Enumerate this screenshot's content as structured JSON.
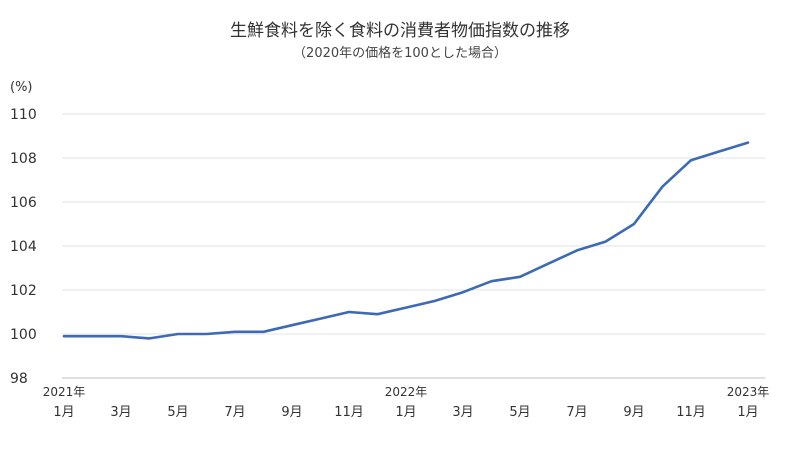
{
  "chart_data": {
    "type": "line",
    "title": "生鮮食料を除く食料の消費者物価指数の推移",
    "subtitle": "（2020年の価格を100とした場合）",
    "ylabel": "(%)",
    "xlabel": "",
    "ylim": [
      98,
      110
    ],
    "yticks": [
      98,
      100,
      102,
      104,
      106,
      108,
      110
    ],
    "grid": true,
    "legend": "none",
    "color": "#3d6ab3",
    "x": [
      "1月",
      "2月",
      "3月",
      "4月",
      "5月",
      "6月",
      "7月",
      "8月",
      "9月",
      "10月",
      "11月",
      "12月",
      "1月",
      "2月",
      "3月",
      "4月",
      "5月",
      "6月",
      "7月",
      "8月",
      "9月",
      "10月",
      "11月",
      "12月",
      "1月"
    ],
    "xtick_labels": [
      "1月",
      "3月",
      "5月",
      "7月",
      "9月",
      "11月",
      "1月",
      "3月",
      "5月",
      "7月",
      "9月",
      "11月",
      "1月"
    ],
    "year_labels": [
      "2021年",
      "2022年",
      "2023年"
    ],
    "series": [
      {
        "values": [
          99.9,
          99.9,
          99.9,
          99.8,
          100.0,
          100.0,
          100.1,
          100.1,
          100.4,
          100.7,
          101.0,
          100.9,
          101.2,
          101.5,
          101.9,
          102.4,
          102.6,
          103.2,
          103.8,
          104.2,
          105.0,
          106.7,
          107.9,
          108.3,
          108.7
        ]
      }
    ]
  }
}
